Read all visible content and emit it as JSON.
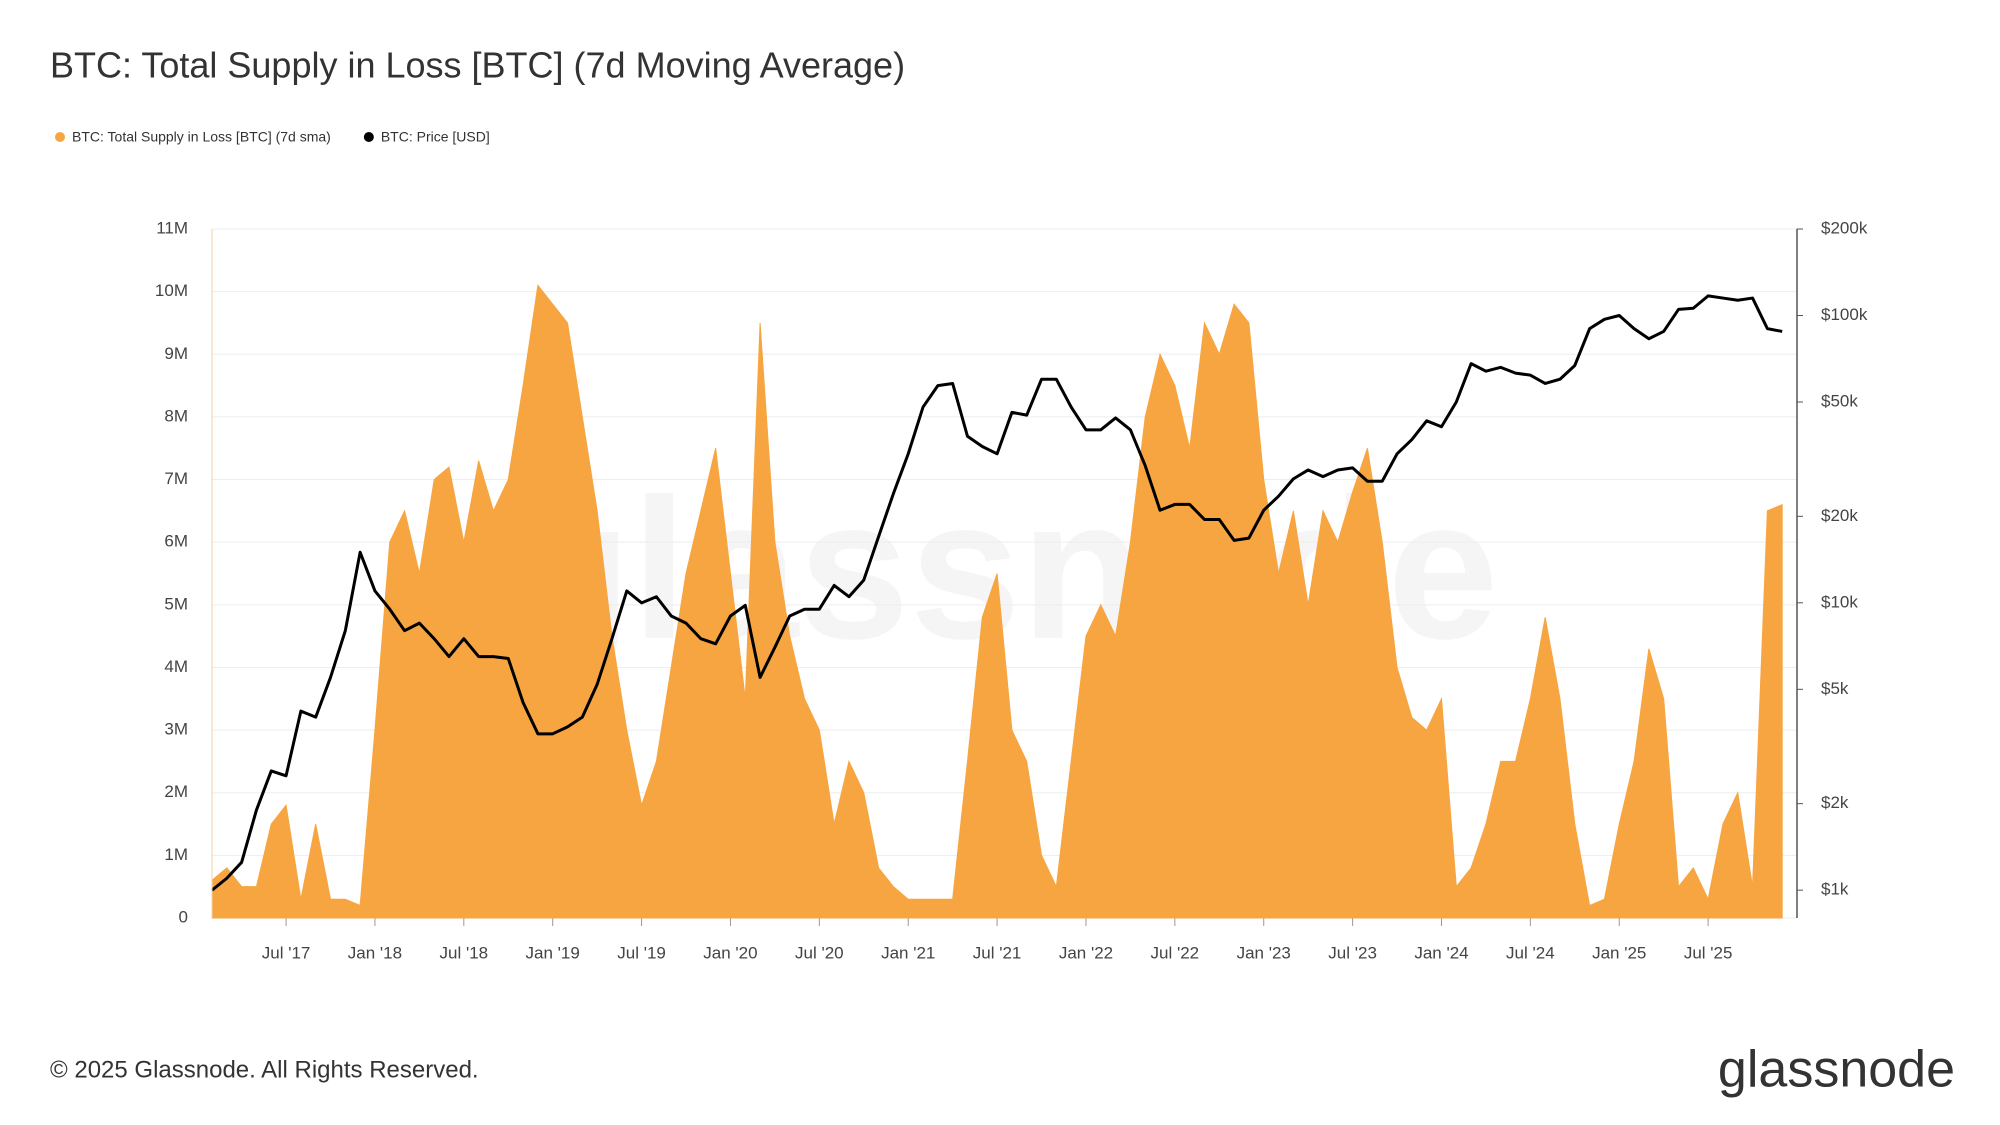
{
  "chart_data": {
    "type": "area-line",
    "title": "BTC: Total Supply in Loss [BTC] (7d Moving Average)",
    "watermark": "glassnode",
    "x": [
      "2017-02",
      "2017-03",
      "2017-04",
      "2017-05",
      "2017-06",
      "2017-07",
      "2017-08",
      "2017-09",
      "2017-10",
      "2017-11",
      "2017-12",
      "2018-01",
      "2018-02",
      "2018-03",
      "2018-04",
      "2018-05",
      "2018-06",
      "2018-07",
      "2018-08",
      "2018-09",
      "2018-10",
      "2018-11",
      "2018-12",
      "2019-01",
      "2019-02",
      "2019-03",
      "2019-04",
      "2019-05",
      "2019-06",
      "2019-07",
      "2019-08",
      "2019-09",
      "2019-10",
      "2019-11",
      "2019-12",
      "2020-01",
      "2020-02",
      "2020-03",
      "2020-04",
      "2020-05",
      "2020-06",
      "2020-07",
      "2020-08",
      "2020-09",
      "2020-10",
      "2020-11",
      "2020-12",
      "2021-01",
      "2021-02",
      "2021-03",
      "2021-04",
      "2021-05",
      "2021-06",
      "2021-07",
      "2021-08",
      "2021-09",
      "2021-10",
      "2021-11",
      "2021-12",
      "2022-01",
      "2022-02",
      "2022-03",
      "2022-04",
      "2022-05",
      "2022-06",
      "2022-07",
      "2022-08",
      "2022-09",
      "2022-10",
      "2022-11",
      "2022-12",
      "2023-01",
      "2023-02",
      "2023-03",
      "2023-04",
      "2023-05",
      "2023-06",
      "2023-07",
      "2023-08",
      "2023-09",
      "2023-10",
      "2023-11",
      "2023-12",
      "2024-01",
      "2024-02",
      "2024-03",
      "2024-04",
      "2024-05",
      "2024-06",
      "2024-07",
      "2024-08",
      "2024-09",
      "2024-10",
      "2024-11",
      "2024-12",
      "2025-01",
      "2025-02",
      "2025-03",
      "2025-04",
      "2025-05",
      "2025-06",
      "2025-07",
      "2025-08",
      "2025-09",
      "2025-10",
      "2025-11",
      "2025-12"
    ],
    "series": [
      {
        "name": "BTC: Total Supply in Loss [BTC] (7d sma)",
        "color": "#f7a541",
        "kind": "area",
        "values": [
          600000,
          800000,
          500000,
          500000,
          1500000,
          1800000,
          300000,
          1500000,
          300000,
          300000,
          200000,
          3000000,
          6000000,
          6500000,
          5500000,
          7000000,
          7200000,
          6000000,
          7300000,
          6500000,
          7000000,
          8500000,
          10100000,
          9800000,
          9500000,
          8000000,
          6500000,
          4500000,
          3000000,
          1800000,
          2500000,
          4000000,
          5500000,
          6500000,
          7500000,
          5500000,
          3500000,
          9500000,
          6000000,
          4500000,
          3500000,
          3000000,
          1500000,
          2500000,
          2000000,
          800000,
          500000,
          300000,
          300000,
          300000,
          300000,
          2500000,
          4800000,
          5500000,
          3000000,
          2500000,
          1000000,
          500000,
          2500000,
          4500000,
          5000000,
          4500000,
          6000000,
          8000000,
          9000000,
          8500000,
          7500000,
          9500000,
          9000000,
          9800000,
          9500000,
          7000000,
          5500000,
          6500000,
          5000000,
          6500000,
          6000000,
          6800000,
          7500000,
          6000000,
          4000000,
          3200000,
          3000000,
          3500000,
          500000,
          800000,
          1500000,
          2500000,
          2500000,
          3500000,
          4800000,
          3500000,
          1500000,
          200000,
          300000,
          1500000,
          2500000,
          4300000,
          3500000,
          500000,
          800000,
          300000,
          1500000,
          2000000,
          500000,
          6500000,
          6600000
        ]
      },
      {
        "name": "BTC: Price [USD]",
        "color": "#000000",
        "kind": "line",
        "axis": "y2",
        "values": [
          1000,
          1100,
          1250,
          1900,
          2600,
          2500,
          4200,
          4000,
          5500,
          8000,
          15000,
          11000,
          9500,
          8000,
          8500,
          7500,
          6500,
          7500,
          6500,
          6500,
          6400,
          4500,
          3500,
          3500,
          3700,
          4000,
          5200,
          7500,
          11000,
          10000,
          10500,
          9000,
          8500,
          7500,
          7200,
          9000,
          9800,
          5500,
          7000,
          9000,
          9500,
          9500,
          11500,
          10500,
          12000,
          17000,
          24000,
          33000,
          48000,
          57000,
          58000,
          38000,
          35000,
          33000,
          46000,
          45000,
          60000,
          60000,
          48000,
          40000,
          40000,
          44000,
          40000,
          30000,
          21000,
          22000,
          22000,
          19500,
          19500,
          16500,
          16800,
          21000,
          23500,
          27000,
          29000,
          27500,
          29000,
          29500,
          26500,
          26500,
          33000,
          37000,
          43000,
          41000,
          50000,
          68000,
          64000,
          66000,
          63000,
          62000,
          58000,
          60000,
          67000,
          90000,
          97000,
          100000,
          90000,
          83000,
          88000,
          105000,
          106000,
          117000,
          115000,
          113000,
          115000,
          90000,
          88000
        ]
      }
    ],
    "xlim": [
      "2017-02",
      "2026-01"
    ],
    "xticks": [
      {
        "value": "2017-07",
        "label": "Jul '17"
      },
      {
        "value": "2018-01",
        "label": "Jan '18"
      },
      {
        "value": "2018-07",
        "label": "Jul '18"
      },
      {
        "value": "2019-01",
        "label": "Jan '19"
      },
      {
        "value": "2019-07",
        "label": "Jul '19"
      },
      {
        "value": "2020-01",
        "label": "Jan '20"
      },
      {
        "value": "2020-07",
        "label": "Jul '20"
      },
      {
        "value": "2021-01",
        "label": "Jan '21"
      },
      {
        "value": "2021-07",
        "label": "Jul '21"
      },
      {
        "value": "2022-01",
        "label": "Jan '22"
      },
      {
        "value": "2022-07",
        "label": "Jul '22"
      },
      {
        "value": "2023-01",
        "label": "Jan '23"
      },
      {
        "value": "2023-07",
        "label": "Jul '23"
      },
      {
        "value": "2024-01",
        "label": "Jan '24"
      },
      {
        "value": "2024-07",
        "label": "Jul '24"
      },
      {
        "value": "2025-01",
        "label": "Jan '25"
      },
      {
        "value": "2025-07",
        "label": "Jul '25"
      }
    ],
    "ylim": [
      0,
      11000000
    ],
    "yticks": [
      0,
      {
        "value": 1000000,
        "label": "1M"
      },
      {
        "value": 2000000,
        "label": "2M"
      },
      {
        "value": 3000000,
        "label": "3M"
      },
      {
        "value": 4000000,
        "label": "4M"
      },
      {
        "value": 5000000,
        "label": "5M"
      },
      {
        "value": 6000000,
        "label": "6M"
      },
      {
        "value": 7000000,
        "label": "7M"
      },
      {
        "value": 8000000,
        "label": "8M"
      },
      {
        "value": 9000000,
        "label": "9M"
      },
      {
        "value": 10000000,
        "label": "10M"
      },
      {
        "value": 11000000,
        "label": "11M"
      }
    ],
    "y2lim": [
      800,
      200000
    ],
    "y2log": true,
    "y2ticks": [
      {
        "value": 1000,
        "label": "$1k"
      },
      {
        "value": 2000,
        "label": "$2k"
      },
      {
        "value": 5000,
        "label": "$5k"
      },
      {
        "value": 10000,
        "label": "$10k"
      },
      {
        "value": 20000,
        "label": "$20k"
      },
      {
        "value": 50000,
        "label": "$50k"
      },
      {
        "value": 100000,
        "label": "$100k"
      },
      {
        "value": 200000,
        "label": "$200k"
      }
    ],
    "grid": true
  },
  "footer": {
    "copyright": "© 2025 Glassnode. All Rights Reserved.",
    "logo": "glassnode"
  }
}
